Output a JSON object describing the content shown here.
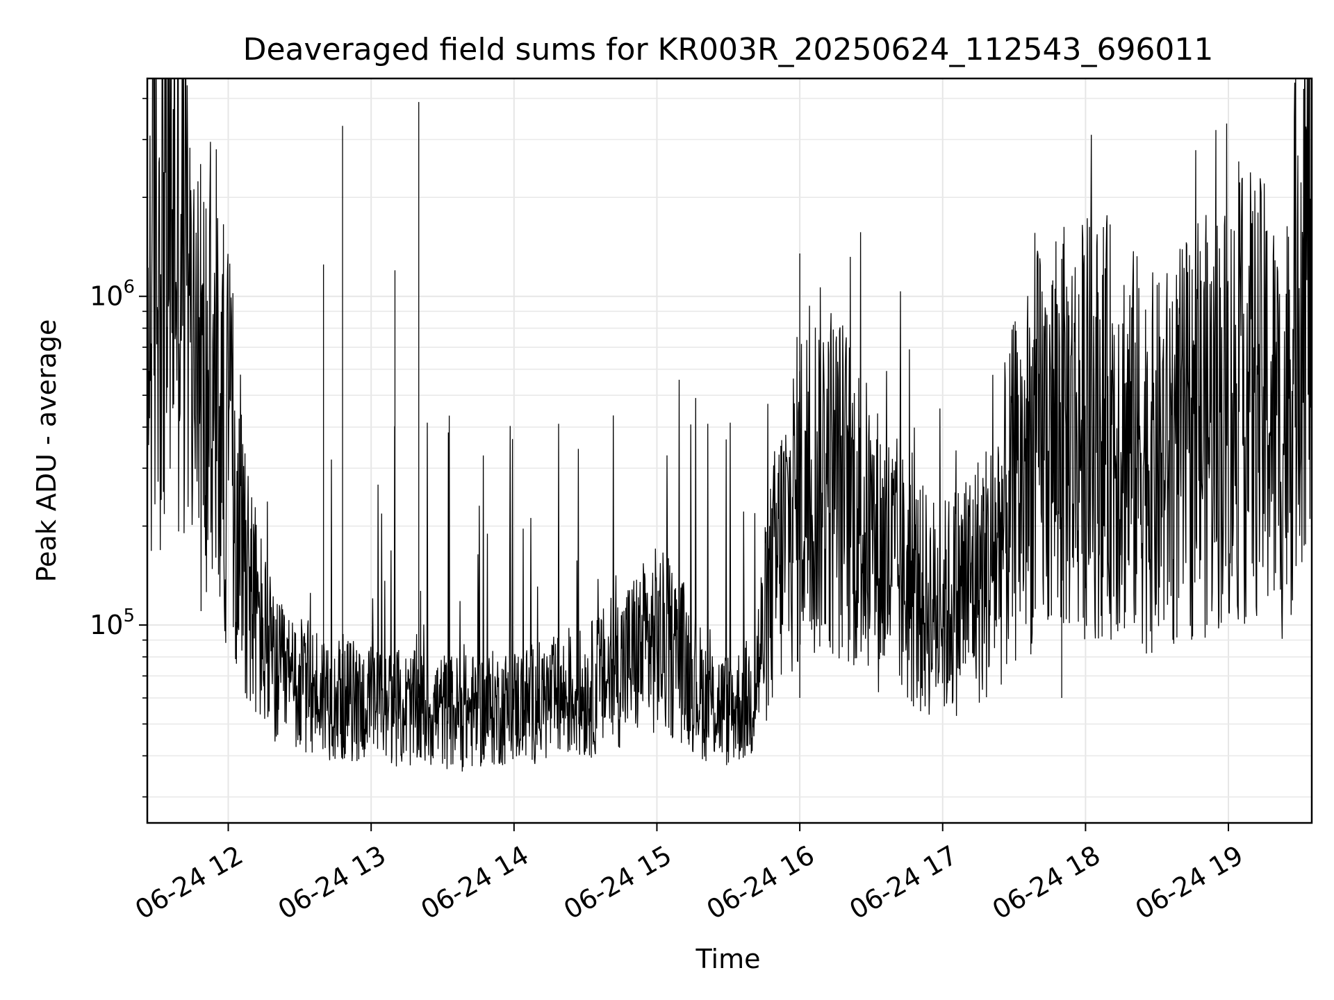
{
  "chart_data": {
    "type": "line",
    "title": "Deaveraged field sums for KR003R_20250624_112543_696011",
    "xlabel": "Time",
    "ylabel": "Peak ADU - average",
    "yscale": "log",
    "xlim": [
      "2025-06-24 11:26",
      "2025-06-24 19:35"
    ],
    "ylim": [
      25000,
      4600000
    ],
    "x_ticks": [
      "06-24 12",
      "06-24 13",
      "06-24 14",
      "06-24 15",
      "06-24 16",
      "06-24 17",
      "06-24 18",
      "06-24 19"
    ],
    "y_ticks": [
      {
        "base": "10",
        "exp": "5",
        "value": 100000
      },
      {
        "base": "10",
        "exp": "6",
        "value": 1000000
      }
    ],
    "grid": true,
    "legend": "none",
    "line_color": "#000000",
    "series": [
      {
        "x": [
          "2025-06-24 11:26",
          "2025-06-24 11:30",
          "2025-06-24 11:35",
          "2025-06-24 11:40",
          "2025-06-24 11:44",
          "2025-06-24 11:47",
          "2025-06-24 11:50",
          "2025-06-24 11:54",
          "2025-06-24 11:58",
          "2025-06-24 12:02",
          "2025-06-24 12:06",
          "2025-06-24 12:10",
          "2025-06-24 12:15",
          "2025-06-24 12:20",
          "2025-06-24 12:30",
          "2025-06-24 12:40",
          "2025-06-24 12:48",
          "2025-06-24 12:55",
          "2025-06-24 13:05",
          "2025-06-24 13:12",
          "2025-06-24 13:20",
          "2025-06-24 13:30",
          "2025-06-24 13:38",
          "2025-06-24 13:45",
          "2025-06-24 13:55",
          "2025-06-24 14:00",
          "2025-06-24 14:10",
          "2025-06-24 14:20",
          "2025-06-24 14:30",
          "2025-06-24 14:40",
          "2025-06-24 14:50",
          "2025-06-24 15:00",
          "2025-06-24 15:10",
          "2025-06-24 15:20",
          "2025-06-24 15:30",
          "2025-06-24 15:40",
          "2025-06-24 15:50",
          "2025-06-24 16:00",
          "2025-06-24 16:10",
          "2025-06-24 16:20",
          "2025-06-24 16:30",
          "2025-06-24 16:40",
          "2025-06-24 16:50",
          "2025-06-24 17:00",
          "2025-06-24 17:10",
          "2025-06-24 17:20",
          "2025-06-24 17:30",
          "2025-06-24 17:40",
          "2025-06-24 17:50",
          "2025-06-24 18:00",
          "2025-06-24 18:10",
          "2025-06-24 18:20",
          "2025-06-24 18:30",
          "2025-06-24 18:40",
          "2025-06-24 18:50",
          "2025-06-24 19:00",
          "2025-06-24 19:10",
          "2025-06-24 19:18",
          "2025-06-24 19:22",
          "2025-06-24 19:26",
          "2025-06-24 19:30",
          "2025-06-24 19:35"
        ],
        "y": [
          800000,
          1500000,
          1800000,
          1700000,
          700000,
          600000,
          500000,
          450000,
          400000,
          300000,
          200000,
          120000,
          90000,
          70000,
          65000,
          62000,
          60000,
          58000,
          57000,
          56000,
          55000,
          55000,
          54000,
          55000,
          56000,
          57000,
          58000,
          60000,
          62000,
          70000,
          80000,
          90000,
          80000,
          60000,
          55000,
          60000,
          150000,
          250000,
          300000,
          250000,
          180000,
          150000,
          120000,
          110000,
          130000,
          150000,
          250000,
          350000,
          380000,
          400000,
          400000,
          350000,
          300000,
          350000,
          400000,
          450000,
          500000,
          450000,
          350000,
          500000,
          1300000,
          1300000
        ],
        "spikes": [
          {
            "x": "2025-06-24 12:48",
            "y": 3300000
          },
          {
            "x": "2025-06-24 13:20",
            "y": 3900000
          },
          {
            "x": "2025-06-24 12:40",
            "y": 1250000
          },
          {
            "x": "2025-06-24 13:10",
            "y": 1200000
          },
          {
            "x": "2025-06-24 16:00",
            "y": 1350000
          },
          {
            "x": "2025-06-24 17:50",
            "y": 1300000
          }
        ]
      }
    ]
  }
}
